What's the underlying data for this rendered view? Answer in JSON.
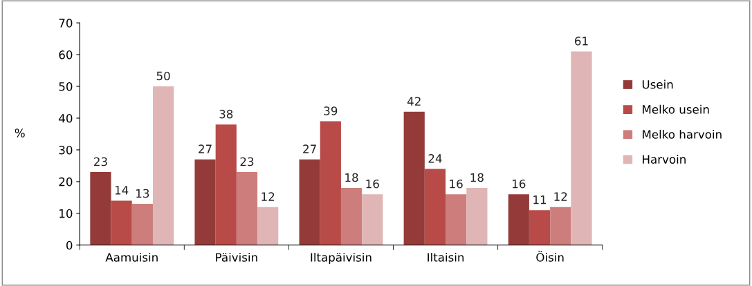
{
  "chart_data": {
    "type": "bar",
    "ylabel": "%",
    "categories": [
      "Aamuisin",
      "Päivisin",
      "Iltapäivisin",
      "Iltaisin",
      "Öisin"
    ],
    "series": [
      {
        "name": "Usein",
        "color": "#943b3a",
        "values": [
          23,
          27,
          27,
          42,
          16
        ]
      },
      {
        "name": "Melko usein",
        "color": "#b84b48",
        "values": [
          14,
          38,
          39,
          24,
          11
        ]
      },
      {
        "name": "Melko harvoin",
        "color": "#cd7e7c",
        "values": [
          13,
          23,
          18,
          16,
          12
        ]
      },
      {
        "name": "Harvoin",
        "color": "#e0b5b5",
        "values": [
          50,
          12,
          16,
          18,
          61
        ]
      }
    ],
    "ylim": [
      0,
      70
    ],
    "yticks": [
      0,
      10,
      20,
      30,
      40,
      50,
      60,
      70
    ],
    "grid": false,
    "legend": "right",
    "data_labels": true
  }
}
